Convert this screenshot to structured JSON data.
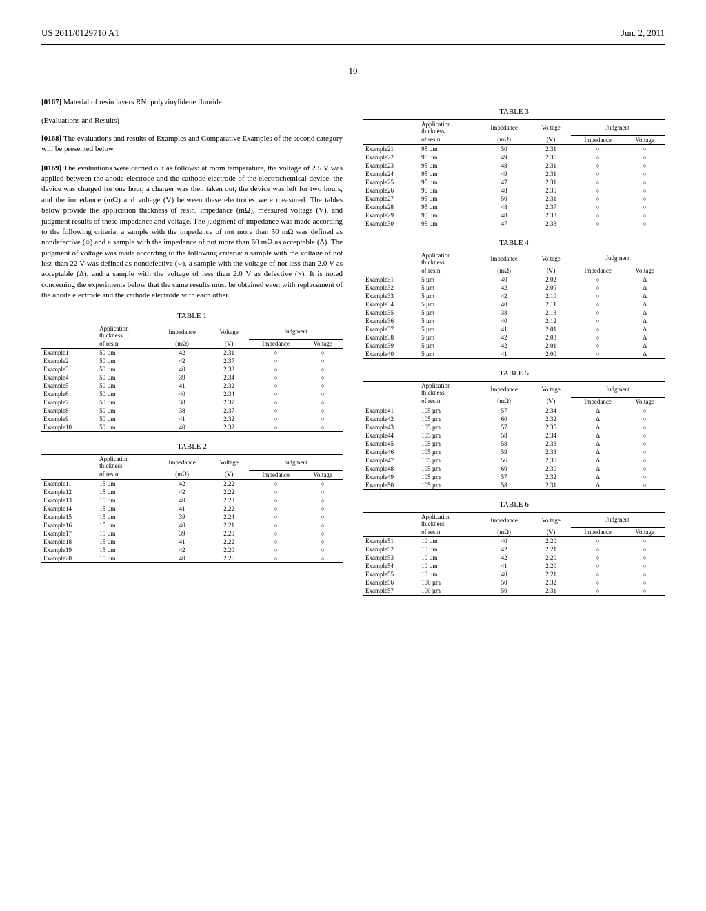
{
  "header": {
    "left": "US 2011/0129710 A1",
    "right": "Jun. 2, 2011"
  },
  "page_number": "10",
  "paragraphs": {
    "p0167": {
      "num": "[0167]",
      "text": "Material of resin layers RN: polyvinylidene fluoride"
    },
    "eval_title": "(Evaluations and Results)",
    "p0168": {
      "num": "[0168]",
      "text": "The evaluations and results of Examples and Comparative Examples of the second category will be presented below."
    },
    "p0169": {
      "num": "[0169]",
      "text": "The evaluations were carried out as follows: at room temperature, the voltage of 2.5 V was applied between the anode electrode and the cathode electrode of the electrochemical device, the device was charged for one hour, a charger was then taken out, the device was left for two hours, and the impedance (mΩ) and voltage (V) between these electrodes were measured. The tables below provide the application thickness of resin, impedance (mΩ), measured voltage (V), and judgment results of these impedance and voltage. The judgment of impedance was made according to the following criteria: a sample with the impedance of not more than 50 mΩ was defined as nondefective (○) and a sample with the impedance of not more than 60 mΩ as acceptable (Δ). The judgment of voltage was made according to the following criteria: a sample with the voltage of not less than 22 V was defined as nondefective (○), a sample with the voltage of not less than 2.0 V as acceptable (Δ), and a sample with the voltage of less than 2.0 V as defective (×). It is noted concerning the experiments below that the same results must be obtained even with replacement of the anode electrode and the cathode electrode with each other."
    }
  },
  "tables": {
    "headers": {
      "app_thickness1": "Application",
      "app_thickness2": "thickness",
      "of_resin": "of resin",
      "impedance": "Impedance",
      "impedance_unit": "(mΩ)",
      "voltage": "Voltage",
      "voltage_unit": "(V)",
      "judgment": "Judgment",
      "judg_imp": "Impedance",
      "judg_volt": "Voltage"
    },
    "table1": {
      "caption": "TABLE 1",
      "rows": [
        [
          "Example1",
          "50 µm",
          "42",
          "2.31",
          "○",
          "○"
        ],
        [
          "Example2",
          "50 µm",
          "42",
          "2.37",
          "○",
          "○"
        ],
        [
          "Example3",
          "50 µm",
          "40",
          "2.33",
          "○",
          "○"
        ],
        [
          "Example4",
          "50 µm",
          "39",
          "2.34",
          "○",
          "○"
        ],
        [
          "Example5",
          "50 µm",
          "41",
          "2.32",
          "○",
          "○"
        ],
        [
          "Example6",
          "50 µm",
          "40",
          "2.34",
          "○",
          "○"
        ],
        [
          "Example7",
          "50 µm",
          "38",
          "2.37",
          "○",
          "○"
        ],
        [
          "Example8",
          "50 µm",
          "38",
          "2.37",
          "○",
          "○"
        ],
        [
          "Example9",
          "50 µm",
          "41",
          "2.32",
          "○",
          "○"
        ],
        [
          "Example10",
          "50 µm",
          "40",
          "2.32",
          "○",
          "○"
        ]
      ]
    },
    "table2": {
      "caption": "TABLE 2",
      "rows": [
        [
          "Example11",
          "15 µm",
          "42",
          "2.22",
          "○",
          "○"
        ],
        [
          "Example12",
          "15 µm",
          "42",
          "2.22",
          "○",
          "○"
        ],
        [
          "Example13",
          "15 µm",
          "40",
          "2.23",
          "○",
          "○"
        ],
        [
          "Example14",
          "15 µm",
          "41",
          "2.22",
          "○",
          "○"
        ],
        [
          "Example15",
          "15 µm",
          "39",
          "2.24",
          "○",
          "○"
        ],
        [
          "Example16",
          "15 µm",
          "40",
          "2.21",
          "○",
          "○"
        ],
        [
          "Example17",
          "15 µm",
          "39",
          "2.20",
          "○",
          "○"
        ],
        [
          "Example18",
          "15 µm",
          "41",
          "2.22",
          "○",
          "○"
        ],
        [
          "Example19",
          "15 µm",
          "42",
          "2.20",
          "○",
          "○"
        ],
        [
          "Example20",
          "15 µm",
          "40",
          "2.26",
          "○",
          "○"
        ]
      ]
    },
    "table3": {
      "caption": "TABLE 3",
      "rows": [
        [
          "Example21",
          "95 µm",
          "50",
          "2.31",
          "○",
          "○"
        ],
        [
          "Example22",
          "95 µm",
          "49",
          "2.36",
          "○",
          "○"
        ],
        [
          "Example23",
          "95 µm",
          "48",
          "2.31",
          "○",
          "○"
        ],
        [
          "Example24",
          "95 µm",
          "49",
          "2.31",
          "○",
          "○"
        ],
        [
          "Example25",
          "95 µm",
          "47",
          "2.31",
          "○",
          "○"
        ],
        [
          "Example26",
          "95 µm",
          "48",
          "2.35",
          "○",
          "○"
        ],
        [
          "Example27",
          "95 µm",
          "50",
          "2.31",
          "○",
          "○"
        ],
        [
          "Example28",
          "95 µm",
          "48",
          "2.37",
          "○",
          "○"
        ],
        [
          "Example29",
          "95 µm",
          "48",
          "2.33",
          "○",
          "○"
        ],
        [
          "Example30",
          "95 µm",
          "47",
          "2.33",
          "○",
          "○"
        ]
      ]
    },
    "table4": {
      "caption": "TABLE 4",
      "rows": [
        [
          "Example31",
          "5 µm",
          "40",
          "2.02",
          "○",
          "Δ"
        ],
        [
          "Example32",
          "5 µm",
          "42",
          "2.09",
          "○",
          "Δ"
        ],
        [
          "Example33",
          "5 µm",
          "42",
          "2.10",
          "○",
          "Δ"
        ],
        [
          "Example34",
          "5 µm",
          "40",
          "2.11",
          "○",
          "Δ"
        ],
        [
          "Example35",
          "5 µm",
          "38",
          "2.13",
          "○",
          "Δ"
        ],
        [
          "Example36",
          "5 µm",
          "40",
          "2.12",
          "○",
          "Δ"
        ],
        [
          "Example37",
          "5 µm",
          "41",
          "2.01",
          "○",
          "Δ"
        ],
        [
          "Example38",
          "5 µm",
          "42",
          "2.03",
          "○",
          "Δ"
        ],
        [
          "Example39",
          "5 µm",
          "42",
          "2.01",
          "○",
          "Δ"
        ],
        [
          "Example40",
          "5 µm",
          "41",
          "2.00",
          "○",
          "Δ"
        ]
      ]
    },
    "table5": {
      "caption": "TABLE 5",
      "rows": [
        [
          "Example41",
          "105 µm",
          "57",
          "2.34",
          "Δ",
          "○"
        ],
        [
          "Example42",
          "105 µm",
          "60",
          "2.32",
          "Δ",
          "○"
        ],
        [
          "Example43",
          "105 µm",
          "57",
          "2.35",
          "Δ",
          "○"
        ],
        [
          "Example44",
          "105 µm",
          "58",
          "2.34",
          "Δ",
          "○"
        ],
        [
          "Example45",
          "105 µm",
          "58",
          "2.33",
          "Δ",
          "○"
        ],
        [
          "Example46",
          "105 µm",
          "59",
          "2.33",
          "Δ",
          "○"
        ],
        [
          "Example47",
          "105 µm",
          "56",
          "2.30",
          "Δ",
          "○"
        ],
        [
          "Example48",
          "105 µm",
          "60",
          "2.30",
          "Δ",
          "○"
        ],
        [
          "Example49",
          "105 µm",
          "57",
          "2.32",
          "Δ",
          "○"
        ],
        [
          "Example50",
          "105 µm",
          "58",
          "2.31",
          "Δ",
          "○"
        ]
      ]
    },
    "table6": {
      "caption": "TABLE 6",
      "rows": [
        [
          "Example51",
          "10 µm",
          "40",
          "2.20",
          "○",
          "○"
        ],
        [
          "Example52",
          "10 µm",
          "42",
          "2.21",
          "○",
          "○"
        ],
        [
          "Example53",
          "10 µm",
          "42",
          "2.20",
          "○",
          "○"
        ],
        [
          "Example54",
          "10 µm",
          "41",
          "2.20",
          "○",
          "○"
        ],
        [
          "Example55",
          "10 µm",
          "40",
          "2.21",
          "○",
          "○"
        ],
        [
          "Example56",
          "100 µm",
          "50",
          "2.32",
          "○",
          "○"
        ],
        [
          "Example57",
          "100 µm",
          "50",
          "2.31",
          "○",
          "○"
        ]
      ]
    }
  }
}
